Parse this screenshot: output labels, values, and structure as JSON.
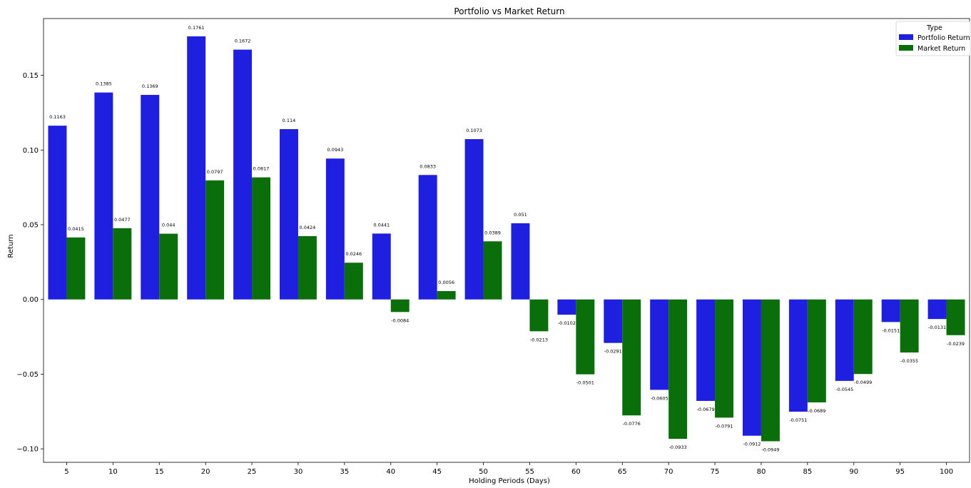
{
  "chart_data": {
    "type": "bar",
    "title": "Portfolio vs Market Return",
    "xlabel": "Holding Periods (Days)",
    "ylabel": "Return",
    "ylim": [
      -0.109,
      0.188
    ],
    "yticks": [
      -0.1,
      -0.05,
      0.0,
      0.05,
      0.1,
      0.15
    ],
    "ytick_labels": [
      "−0.10",
      "−0.05",
      "0.00",
      "0.05",
      "0.10",
      "0.15"
    ],
    "grid": false,
    "legend": {
      "title": "Type",
      "placement": "top-right"
    },
    "categories": [
      "5",
      "10",
      "15",
      "20",
      "25",
      "30",
      "35",
      "40",
      "45",
      "50",
      "55",
      "60",
      "65",
      "70",
      "75",
      "80",
      "85",
      "90",
      "95",
      "100"
    ],
    "series": [
      {
        "name": "Portfolio Return",
        "color": "#1f1fe0",
        "values": [
          0.1163,
          0.1385,
          0.1369,
          0.1761,
          0.1672,
          0.114,
          0.0943,
          0.0441,
          0.0833,
          0.1073,
          0.051,
          -0.0102,
          -0.0291,
          -0.0605,
          -0.0679,
          -0.0912,
          -0.0751,
          -0.0545,
          -0.0151,
          -0.0131
        ],
        "labels": [
          "0.1163",
          "0.1385",
          "0.1369",
          "0.1761",
          "0.1672",
          "0.114",
          "0.0943",
          "0.0441",
          "0.0833",
          "0.1073",
          "0.051",
          "-0.0102",
          "-0.0291",
          "-0.0605",
          "-0.0679",
          "-0.0912",
          "-0.0751",
          "-0.0545",
          "-0.0151",
          "-0.0131"
        ]
      },
      {
        "name": "Market Return",
        "color": "#0a6e0a",
        "values": [
          0.0415,
          0.0477,
          0.044,
          0.0797,
          0.0817,
          0.0424,
          0.0246,
          -0.0084,
          0.0056,
          0.0389,
          -0.0213,
          -0.0501,
          -0.0776,
          -0.0933,
          -0.0791,
          -0.0949,
          -0.0689,
          -0.0499,
          -0.0355,
          -0.0239
        ],
        "labels": [
          "0.0415",
          "0.0477",
          "0.044",
          "0.0797",
          "0.0817",
          "0.0424",
          "0.0246",
          "-0.0084",
          "0.0056",
          "0.0389",
          "-0.0213",
          "-0.0501",
          "-0.0776",
          "-0.0933",
          "-0.0791",
          "-0.0949",
          "-0.0689",
          "-0.0499",
          "-0.0355",
          "-0.0239"
        ]
      }
    ]
  }
}
